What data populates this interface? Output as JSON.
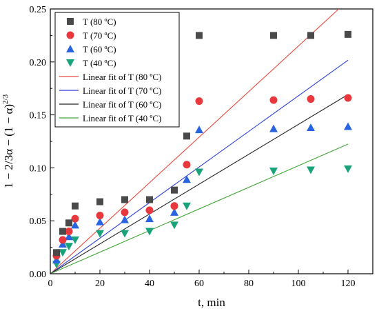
{
  "chart_data": {
    "type": "scatter",
    "xlabel": "t, min",
    "ylabel": "1 − 2/3α − (1 − α)^2/3",
    "ylabel_parts": {
      "main": "1 − 2/3α − (1 − α)",
      "sup": "2/3"
    },
    "xlim": [
      0,
      130
    ],
    "ylim": [
      0,
      0.25
    ],
    "x_ticks": [
      0,
      20,
      40,
      60,
      80,
      100,
      120
    ],
    "y_ticks": [
      0.0,
      0.05,
      0.1,
      0.15,
      0.2,
      0.25
    ],
    "x_tick_labels": [
      "0",
      "20",
      "40",
      "60",
      "80",
      "100",
      "120"
    ],
    "y_tick_labels": [
      "0.00",
      "0.05",
      "0.10",
      "0.15",
      "0.20",
      "0.25"
    ],
    "grid": false,
    "legend_position": "top-left",
    "series": [
      {
        "name": "T (80 ºC)",
        "marker": "square",
        "color": "#4a4a4a",
        "x": [
          2.5,
          5,
          7.5,
          10,
          20,
          30,
          40,
          50,
          55,
          60,
          90,
          105,
          120
        ],
        "y": [
          0.02,
          0.04,
          0.048,
          0.064,
          0.068,
          0.07,
          0.07,
          0.079,
          0.13,
          0.225,
          0.225,
          0.225,
          0.226
        ]
      },
      {
        "name": "T (70 ºC)",
        "marker": "circle",
        "color": "#e8383d",
        "x": [
          2.5,
          5,
          7.5,
          10,
          20,
          30,
          40,
          50,
          55,
          60,
          90,
          105,
          120
        ],
        "y": [
          0.017,
          0.032,
          0.04,
          0.052,
          0.055,
          0.058,
          0.06,
          0.064,
          0.103,
          0.163,
          0.164,
          0.165,
          0.166
        ]
      },
      {
        "name": "T (60 ºC)",
        "marker": "triangle-up",
        "color": "#2864e0",
        "x": [
          2.5,
          5,
          7.5,
          10,
          20,
          30,
          40,
          50,
          55,
          60,
          90,
          105,
          120
        ],
        "y": [
          0.013,
          0.028,
          0.035,
          0.046,
          0.049,
          0.051,
          0.052,
          0.058,
          0.089,
          0.136,
          0.137,
          0.138,
          0.139
        ]
      },
      {
        "name": "T (40 ºC)",
        "marker": "triangle-down",
        "color": "#1aa37a",
        "x": [
          2.5,
          5,
          7.5,
          10,
          20,
          30,
          40,
          50,
          55,
          60,
          90,
          105,
          120
        ],
        "y": [
          0.009,
          0.02,
          0.026,
          0.032,
          0.038,
          0.038,
          0.04,
          0.046,
          0.064,
          0.096,
          0.097,
          0.098,
          0.099
        ]
      }
    ],
    "fits": [
      {
        "name": "Linear fit of T (80 ºC)",
        "color": "#e8483c",
        "slope": 0.00215,
        "intercept": 0
      },
      {
        "name": "Linear fit of T (70 ºC)",
        "color": "#2c3fd8",
        "slope": 0.00168,
        "intercept": 0
      },
      {
        "name": "Linear fit of T (60 ºC)",
        "color": "#222222",
        "slope": 0.00141,
        "intercept": 0
      },
      {
        "name": "Linear fit of T (40 ºC)",
        "color": "#3fa535",
        "slope": 0.00102,
        "intercept": 0
      }
    ]
  }
}
